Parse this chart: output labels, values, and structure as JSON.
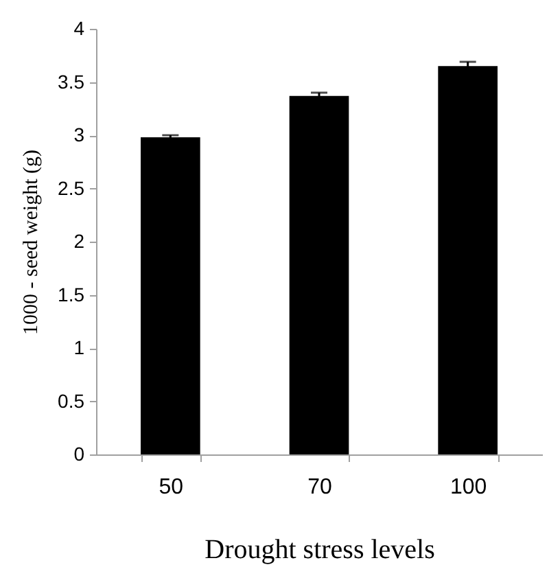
{
  "chart_data": {
    "type": "bar",
    "xlabel": "Drought stress levels",
    "ylabel": "1000 - seed weight (g)",
    "categories": [
      "50",
      "70",
      "100"
    ],
    "values": [
      2.98,
      3.37,
      3.65
    ],
    "errors": [
      0.02,
      0.03,
      0.04
    ],
    "color": "#000000",
    "ylim": [
      0,
      4
    ],
    "yticks": [
      0,
      0.5,
      1,
      1.5,
      2,
      2.5,
      3,
      3.5,
      4
    ],
    "grid": false
  }
}
